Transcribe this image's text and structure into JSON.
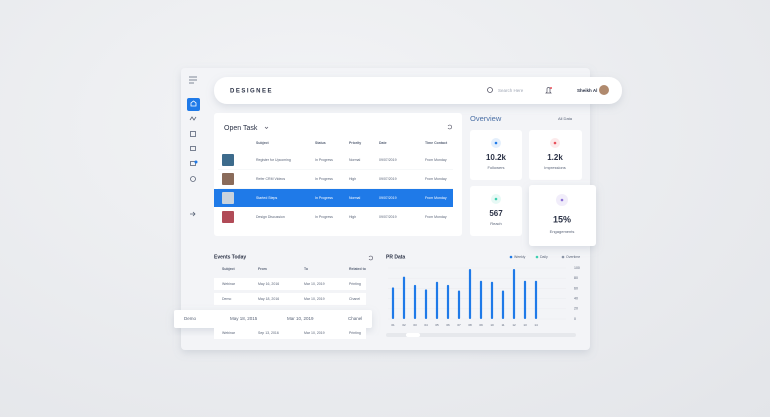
{
  "header": {
    "brand": "DESIGNEE",
    "search": "Search Here",
    "user": "Sheikh Al"
  },
  "open_task": {
    "title": "Open Task",
    "columns": [
      "Subject",
      "Status",
      "Priority",
      "Date",
      "Time Contact"
    ],
    "rows": [
      [
        "Register for Upcoming",
        "In Progress",
        "Normal",
        "09/07/2019",
        "From Monday"
      ],
      [
        "Refer CRM Videos",
        "In Progress",
        "High",
        "09/07/2019",
        "From Monday"
      ],
      [
        "Started Steps",
        "In Progress",
        "Normal",
        "09/07/2019",
        "From Monday"
      ],
      [
        "Design Discussion",
        "In Progress",
        "High",
        "09/07/2019",
        "From Monday"
      ]
    ]
  },
  "overview": {
    "title": "Overview",
    "filter": "All Data",
    "cards": [
      {
        "value": "10.2k",
        "label": "Followers"
      },
      {
        "value": "1.2k",
        "label": "Impressions"
      },
      {
        "value": "567",
        "label": "Reach"
      },
      {
        "value": "15%",
        "label": "Engagements"
      }
    ]
  },
  "events": {
    "title": "Events Today",
    "columns": [
      "Subject",
      "From",
      "To",
      "Related to"
    ],
    "rows": [
      [
        "Webinar",
        "May 16, 2016",
        "Mar 10, 2019",
        "Printing"
      ],
      [
        "Demo",
        "May 18, 2016",
        "Mar 10, 2019",
        "Chanel"
      ],
      [
        "Demo",
        "May 18, 2015",
        "Mar 10, 2019",
        "Chanel"
      ],
      [
        "Webinar",
        "Sep 13, 2016",
        "Mar 10, 2019",
        "Printing"
      ]
    ]
  },
  "pr_data": {
    "title": "PR Data",
    "legend": [
      {
        "name": "Weekly",
        "color": "#1f7ae8"
      },
      {
        "name": "Daily",
        "color": "#3ccfb0"
      },
      {
        "name": "Overtime",
        "color": "#8a94a6"
      }
    ],
    "categories": [
      "01",
      "02",
      "03",
      "04",
      "05",
      "06",
      "07",
      "08",
      "09",
      "10",
      "11",
      "12",
      "13",
      "14"
    ],
    "values": [
      62,
      83,
      67,
      58,
      73,
      67,
      56,
      98,
      75,
      73,
      56,
      98,
      75,
      75
    ],
    "ylim": [
      0,
      100
    ],
    "yticks": [
      0,
      20,
      40,
      60,
      80,
      100
    ]
  }
}
